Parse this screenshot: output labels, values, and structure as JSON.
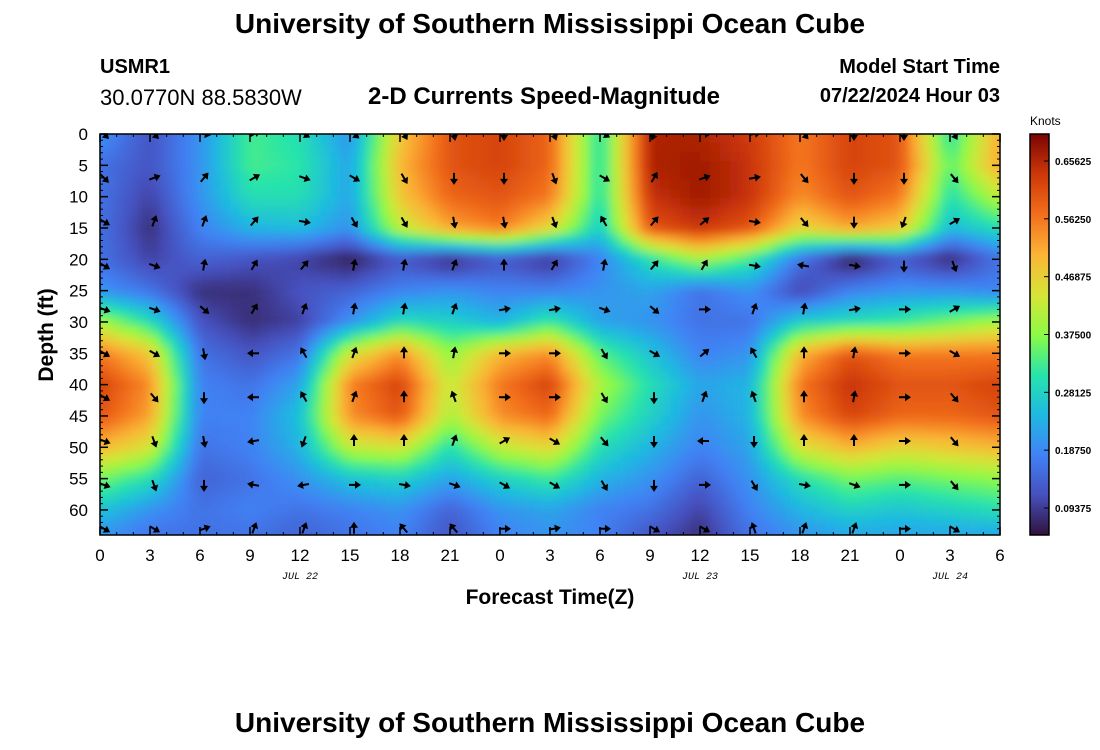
{
  "header": {
    "title": "University of Southern Mississippi Ocean Cube",
    "station_id": "USMR1",
    "coordinates": "30.0770N  88.5830W",
    "plot_title": "2-D Currents Speed-Magnitude",
    "model_start_label": "Model Start Time",
    "model_start_value": "07/22/2024 Hour 03"
  },
  "footer": {
    "title": "University of Southern Mississippi Ocean Cube"
  },
  "chart_data": {
    "type": "heatmap",
    "title": "2-D Currents Speed-Magnitude",
    "xlabel": "Forecast Time(Z)",
    "ylabel": "Depth (ft)",
    "x_range_hours": [
      0,
      54
    ],
    "ylim": [
      0,
      64
    ],
    "y_inverted": true,
    "x_ticks": [
      {
        "hour": 0,
        "label": "0"
      },
      {
        "hour": 3,
        "label": "3"
      },
      {
        "hour": 6,
        "label": "6"
      },
      {
        "hour": 9,
        "label": "9"
      },
      {
        "hour": 12,
        "label": "12"
      },
      {
        "hour": 15,
        "label": "15"
      },
      {
        "hour": 18,
        "label": "18"
      },
      {
        "hour": 21,
        "label": "21"
      },
      {
        "hour": 24,
        "label": "0"
      },
      {
        "hour": 27,
        "label": "3"
      },
      {
        "hour": 30,
        "label": "6"
      },
      {
        "hour": 33,
        "label": "9"
      },
      {
        "hour": 36,
        "label": "12"
      },
      {
        "hour": 39,
        "label": "15"
      },
      {
        "hour": 42,
        "label": "18"
      },
      {
        "hour": 45,
        "label": "21"
      },
      {
        "hour": 48,
        "label": "0"
      },
      {
        "hour": 51,
        "label": "3"
      },
      {
        "hour": 54,
        "label": "6"
      }
    ],
    "date_labels": [
      {
        "hour": 12,
        "label": "JUL 22"
      },
      {
        "hour": 36,
        "label": "JUL 23"
      },
      {
        "hour": 51,
        "label": "JUL 24"
      }
    ],
    "y_ticks": [
      0,
      5,
      10,
      15,
      20,
      25,
      30,
      35,
      40,
      45,
      50,
      55,
      60
    ],
    "colorbar": {
      "label": "Knots",
      "min": 0.05,
      "max": 0.7,
      "ticks": [
        {
          "value": 0.65625,
          "label": "0.65625"
        },
        {
          "value": 0.5625,
          "label": "0.56250"
        },
        {
          "value": 0.46875,
          "label": "0.46875"
        },
        {
          "value": 0.375,
          "label": "0.37500"
        },
        {
          "value": 0.28125,
          "label": "0.28125"
        },
        {
          "value": 0.1875,
          "label": "0.18750"
        },
        {
          "value": 0.09375,
          "label": "0.09375"
        }
      ]
    },
    "grid_hours": [
      0,
      3,
      6,
      9,
      12,
      15,
      18,
      21,
      24,
      27,
      30,
      33,
      36,
      39,
      42,
      45,
      48,
      51,
      54
    ],
    "grid_depths": [
      0,
      5,
      10,
      15,
      20,
      25,
      30,
      35,
      40,
      45,
      50,
      55,
      60,
      64
    ],
    "speed_knots": [
      [
        0.2,
        0.12,
        0.2,
        0.33,
        0.3,
        0.2,
        0.48,
        0.6,
        0.62,
        0.58,
        0.3,
        0.66,
        0.66,
        0.63,
        0.56,
        0.62,
        0.6,
        0.3,
        0.52
      ],
      [
        0.16,
        0.12,
        0.2,
        0.33,
        0.31,
        0.22,
        0.5,
        0.6,
        0.62,
        0.58,
        0.3,
        0.66,
        0.67,
        0.64,
        0.56,
        0.62,
        0.6,
        0.34,
        0.52
      ],
      [
        0.16,
        0.1,
        0.2,
        0.3,
        0.3,
        0.22,
        0.48,
        0.58,
        0.6,
        0.56,
        0.3,
        0.64,
        0.67,
        0.64,
        0.54,
        0.6,
        0.56,
        0.3,
        0.42
      ],
      [
        0.16,
        0.08,
        0.18,
        0.24,
        0.25,
        0.2,
        0.42,
        0.52,
        0.56,
        0.46,
        0.27,
        0.6,
        0.64,
        0.6,
        0.46,
        0.52,
        0.48,
        0.25,
        0.3
      ],
      [
        0.16,
        0.1,
        0.14,
        0.12,
        0.1,
        0.06,
        0.12,
        0.07,
        0.12,
        0.08,
        0.18,
        0.3,
        0.4,
        0.32,
        0.16,
        0.05,
        0.12,
        0.07,
        0.16
      ],
      [
        0.2,
        0.16,
        0.08,
        0.08,
        0.12,
        0.14,
        0.18,
        0.2,
        0.18,
        0.18,
        0.2,
        0.22,
        0.16,
        0.2,
        0.1,
        0.18,
        0.2,
        0.2,
        0.18
      ],
      [
        0.4,
        0.3,
        0.12,
        0.08,
        0.1,
        0.2,
        0.3,
        0.28,
        0.24,
        0.32,
        0.22,
        0.2,
        0.16,
        0.16,
        0.28,
        0.3,
        0.32,
        0.36,
        0.4
      ],
      [
        0.56,
        0.48,
        0.16,
        0.12,
        0.16,
        0.44,
        0.54,
        0.38,
        0.5,
        0.54,
        0.34,
        0.26,
        0.18,
        0.2,
        0.5,
        0.6,
        0.56,
        0.56,
        0.56
      ],
      [
        0.62,
        0.54,
        0.18,
        0.16,
        0.22,
        0.55,
        0.62,
        0.42,
        0.56,
        0.62,
        0.4,
        0.3,
        0.22,
        0.24,
        0.56,
        0.64,
        0.6,
        0.6,
        0.62
      ],
      [
        0.6,
        0.52,
        0.18,
        0.18,
        0.26,
        0.54,
        0.6,
        0.4,
        0.54,
        0.58,
        0.36,
        0.28,
        0.2,
        0.24,
        0.54,
        0.62,
        0.58,
        0.58,
        0.6
      ],
      [
        0.5,
        0.44,
        0.16,
        0.18,
        0.24,
        0.42,
        0.44,
        0.3,
        0.42,
        0.46,
        0.3,
        0.24,
        0.18,
        0.22,
        0.44,
        0.5,
        0.46,
        0.48,
        0.5
      ],
      [
        0.36,
        0.3,
        0.14,
        0.16,
        0.2,
        0.26,
        0.28,
        0.22,
        0.28,
        0.32,
        0.24,
        0.2,
        0.14,
        0.2,
        0.3,
        0.36,
        0.34,
        0.36,
        0.38
      ],
      [
        0.26,
        0.2,
        0.16,
        0.18,
        0.16,
        0.18,
        0.2,
        0.14,
        0.2,
        0.22,
        0.18,
        0.16,
        0.1,
        0.18,
        0.24,
        0.28,
        0.26,
        0.28,
        0.3
      ],
      [
        0.2,
        0.16,
        0.16,
        0.16,
        0.14,
        0.16,
        0.18,
        0.12,
        0.18,
        0.2,
        0.18,
        0.12,
        0.08,
        0.16,
        0.2,
        0.22,
        0.22,
        0.22,
        0.22
      ]
    ],
    "vector_hours": [
      0,
      3,
      6,
      9,
      12,
      15,
      18,
      21,
      24,
      27,
      30,
      33,
      36,
      39,
      42,
      45,
      48,
      51
    ],
    "vector_depths": [
      0,
      7,
      14,
      21,
      28,
      35,
      42,
      49,
      56,
      63
    ],
    "direction_deg": [
      [
        135,
        135,
        100,
        60,
        120,
        130,
        150,
        170,
        180,
        160,
        120,
        200,
        90,
        80,
        140,
        180,
        180,
        150
      ],
      [
        135,
        70,
        40,
        60,
        110,
        120,
        150,
        180,
        180,
        160,
        120,
        30,
        70,
        80,
        140,
        180,
        180,
        140
      ],
      [
        120,
        20,
        20,
        40,
        100,
        150,
        150,
        170,
        170,
        160,
        330,
        40,
        50,
        100,
        140,
        180,
        200,
        60
      ],
      [
        120,
        110,
        10,
        30,
        40,
        10,
        10,
        20,
        0,
        30,
        10,
        40,
        30,
        100,
        280,
        100,
        180,
        160
      ],
      [
        110,
        110,
        130,
        30,
        20,
        10,
        10,
        20,
        80,
        80,
        110,
        130,
        90,
        20,
        10,
        80,
        90,
        60
      ],
      [
        120,
        120,
        170,
        270,
        330,
        20,
        0,
        10,
        90,
        90,
        150,
        120,
        50,
        330,
        0,
        10,
        90,
        120
      ],
      [
        120,
        140,
        180,
        270,
        330,
        20,
        0,
        340,
        90,
        90,
        150,
        180,
        20,
        340,
        0,
        10,
        90,
        140
      ],
      [
        110,
        160,
        170,
        260,
        200,
        0,
        0,
        20,
        60,
        120,
        140,
        180,
        270,
        180,
        0,
        0,
        90,
        140
      ],
      [
        110,
        160,
        180,
        280,
        260,
        90,
        100,
        110,
        120,
        120,
        150,
        180,
        90,
        150,
        100,
        110,
        90,
        140
      ],
      [
        120,
        120,
        70,
        20,
        20,
        0,
        320,
        320,
        90,
        80,
        90,
        120,
        120,
        340,
        20,
        20,
        90,
        120
      ]
    ]
  }
}
